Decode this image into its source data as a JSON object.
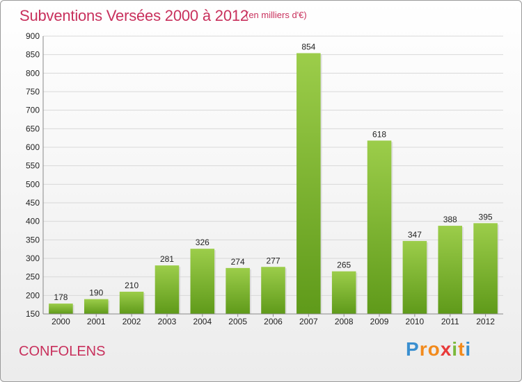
{
  "header": {
    "title": "Subventions Versées 2000 à 2012",
    "subtitle": "(en milliers d'€)"
  },
  "footer": {
    "city": "CONFOLENS",
    "logo_letters": [
      "P",
      "r",
      "o",
      "x",
      "i",
      "t",
      "i"
    ],
    "logo_colors": [
      "#3a8fd0",
      "#f28a1c",
      "#f28a1c",
      "#e83a3a",
      "#7ab83a",
      "#f28a1c",
      "#3a8fd0"
    ]
  },
  "chart_data": {
    "type": "bar",
    "title": "Subventions Versées 2000 à 2012",
    "subtitle": "(en milliers d'€)",
    "xlabel": "",
    "ylabel": "",
    "categories": [
      "2000",
      "2001",
      "2002",
      "2003",
      "2004",
      "2005",
      "2006",
      "2007",
      "2008",
      "2009",
      "2010",
      "2011",
      "2012"
    ],
    "values": [
      178,
      190,
      210,
      281,
      326,
      274,
      277,
      854,
      265,
      618,
      347,
      388,
      395
    ],
    "ylim": [
      150,
      900
    ],
    "yticks": [
      150,
      200,
      250,
      300,
      350,
      400,
      450,
      500,
      550,
      600,
      650,
      700,
      750,
      800,
      850,
      900
    ],
    "grid": true,
    "bar_color_top": "#9ccd4a",
    "bar_color_bottom": "#5f9a1a"
  }
}
